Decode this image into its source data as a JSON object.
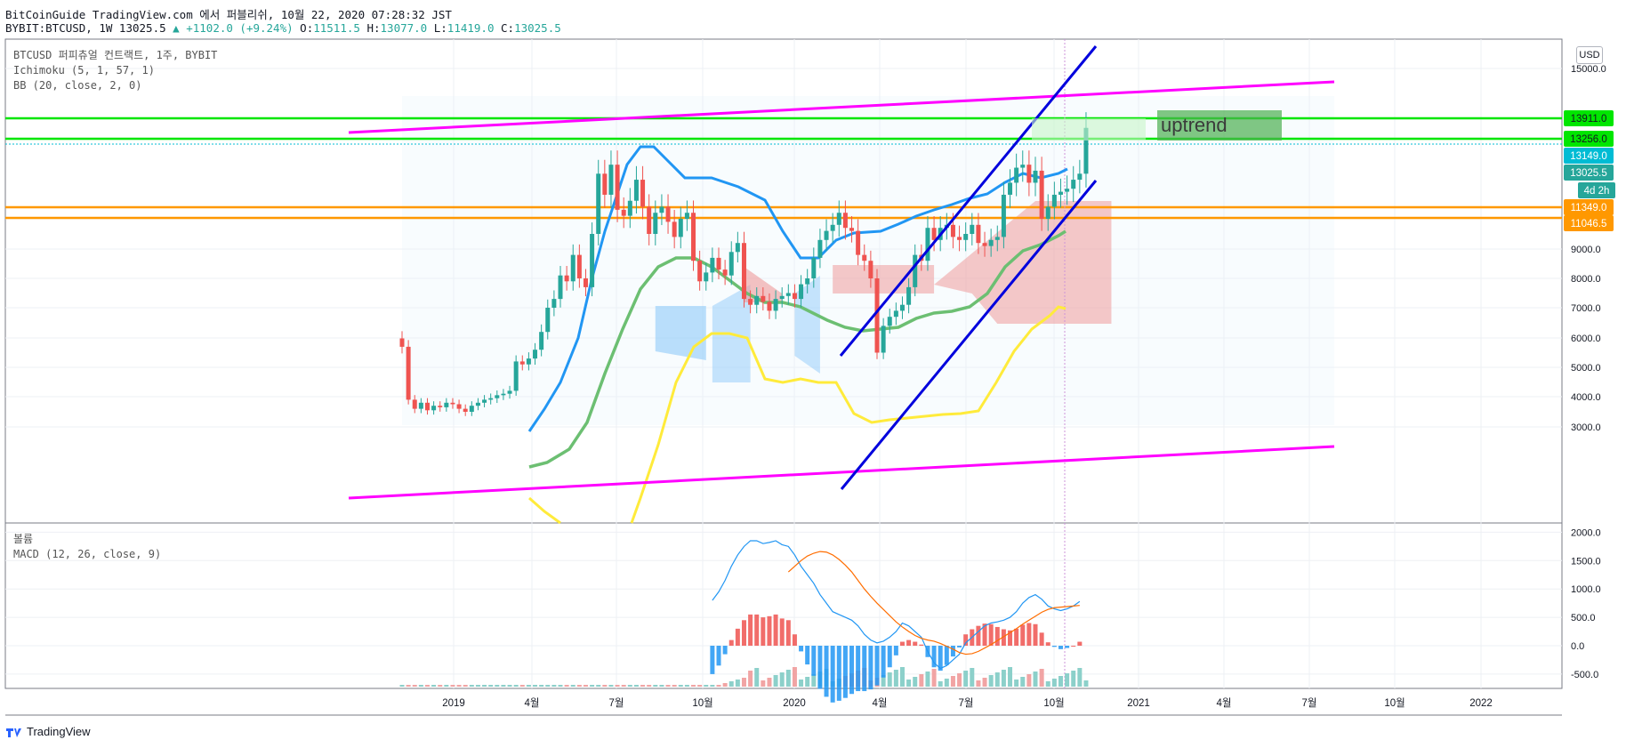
{
  "header": {
    "line1": "BitCoinGuide TradingView.com 에서 퍼블리쉬, 10월 22, 2020 07:28:32 JST",
    "symbol": "BYBIT:BTCUSD, 1W 13025.5",
    "change_arrow": "▲",
    "change": "+1102.0 (+9.24%)",
    "o_label": "O:",
    "o": "11511.5",
    "h_label": "H:",
    "h": "13077.0",
    "l_label": "L:",
    "l": "11419.0",
    "c_label": "C:",
    "c": "13025.5"
  },
  "legend": {
    "title": "BTCUSD 퍼피츄얼 컨트랙트, 1주, BYBIT",
    "ichimoku": "Ichimoku (5, 1, 57, 1)",
    "bb": "BB (20, close, 2, 0)",
    "volume": "볼륨",
    "macd": "MACD (12, 26, close, 9)"
  },
  "currency_button": "USD",
  "annotation": "uptrend",
  "footer": {
    "brand": "TradingView"
  },
  "colors": {
    "up": "#26a69a",
    "down": "#ef5350",
    "bb_upper": "#2196f3",
    "bb_basis": "#6cbf72",
    "bb_lower": "#ffeb3b",
    "channel": "#ff00ff",
    "trend": "#0000dd",
    "resistance": "#00e600",
    "support": "#ff9800",
    "macd": "#2196f3",
    "signal": "#ff6d00"
  },
  "chart_data": [
    {
      "type": "line",
      "panel": "price",
      "ylim": [
        2500,
        16000
      ],
      "y_ticks": [
        "3000.0",
        "4000.0",
        "5000.0",
        "6000.0",
        "7000.0",
        "8000.0",
        "9000.0",
        "10000.0",
        "15000.0"
      ],
      "x_ticks": [
        "2019",
        "4월",
        "7월",
        "10월",
        "2020",
        "4월",
        "7월",
        "10월",
        "2021",
        "4월",
        "7월",
        "10월",
        "2022"
      ],
      "price_labels": [
        {
          "label": "13911.0",
          "value": 13911,
          "color": "#00e600"
        },
        {
          "label": "13256.0",
          "value": 13256,
          "color": "#00e600"
        },
        {
          "label": "13149.0",
          "value": 13149,
          "color": "#00bcd4"
        },
        {
          "label": "13025.5",
          "value": 13025.5,
          "color": "#26a69a"
        },
        {
          "label": "4d 2h",
          "value": 12550,
          "color": "#26a69a"
        },
        {
          "label": "11349.0",
          "value": 11349,
          "color": "#ff9800"
        },
        {
          "label": "11046.5",
          "value": 11046.5,
          "color": "#ff9800"
        }
      ],
      "horizontal_levels": [
        {
          "name": "resistance",
          "values": [
            13911,
            13256
          ]
        },
        {
          "name": "support",
          "values": [
            11349,
            11046.5
          ]
        }
      ],
      "close_series": [
        5700,
        3900,
        3600,
        3800,
        3550,
        3700,
        3650,
        3800,
        3750,
        3600,
        3500,
        3700,
        3800,
        3900,
        3950,
        4050,
        4100,
        4200,
        5200,
        5100,
        5300,
        5600,
        6200,
        7000,
        7300,
        8100,
        7900,
        8800,
        8000,
        7700,
        9500,
        11500,
        10800,
        11800,
        10300,
        10100,
        10600,
        11300,
        10400,
        9500,
        10200,
        10400,
        9900,
        9400,
        10000,
        10200,
        8600,
        7900,
        8200,
        8700,
        8300,
        8100,
        8900,
        9200,
        7300,
        7100,
        7400,
        7200,
        6900,
        7300,
        7400,
        7500,
        7300,
        7800,
        8000,
        8700,
        9300,
        9600,
        9800,
        10200,
        9700,
        9600,
        8800,
        8600,
        8000,
        5500,
        6400,
        6700,
        6900,
        7100,
        7700,
        8800,
        8600,
        9700,
        9300,
        9700,
        9800,
        9400,
        9300,
        9500,
        9800,
        9200,
        9100,
        9300,
        9400,
        10800,
        11200,
        11700,
        11800,
        11200,
        11600,
        10000,
        10400,
        10800,
        10900,
        11000,
        11300,
        11500,
        13025
      ],
      "annotation_box": {
        "text": "uptrend",
        "from_week": 99,
        "to_week": 127,
        "top": 14050,
        "bottom": 13300
      }
    },
    {
      "type": "bar",
      "panel": "macd",
      "ylim": [
        -650,
        2100
      ],
      "y_ticks": [
        "2000.0",
        "1500.0",
        "1000.0",
        "500.0",
        "0.0",
        "-500.0"
      ],
      "series": [
        {
          "name": "MACD",
          "values": [
            800,
            950,
            1150,
            1400,
            1600,
            1750,
            1850,
            1850,
            1800,
            1820,
            1850,
            1780,
            1750,
            1600,
            1400,
            1250,
            1100,
            900,
            750,
            600,
            550,
            500,
            450,
            350,
            200,
            100,
            50,
            80,
            150,
            250,
            400,
            350,
            250,
            150,
            -100,
            -300,
            -400,
            -350,
            -250,
            -150,
            50,
            150,
            250,
            350,
            400,
            420,
            450,
            500,
            600,
            750,
            850,
            900,
            820,
            700,
            650,
            620,
            650,
            700,
            780
          ]
        },
        {
          "name": "Signal",
          "values": [
            1300,
            1400,
            1500,
            1580,
            1630,
            1660,
            1650,
            1600,
            1520,
            1420,
            1300,
            1150,
            1000,
            870,
            750,
            640,
            530,
            420,
            330,
            250,
            180,
            130,
            100,
            80,
            40,
            -10,
            -60,
            -120,
            -150,
            -140,
            -100,
            -40,
            20,
            90,
            160,
            230,
            300,
            380,
            450,
            520,
            590,
            640,
            670,
            680,
            690,
            700,
            710
          ]
        }
      ]
    }
  ]
}
